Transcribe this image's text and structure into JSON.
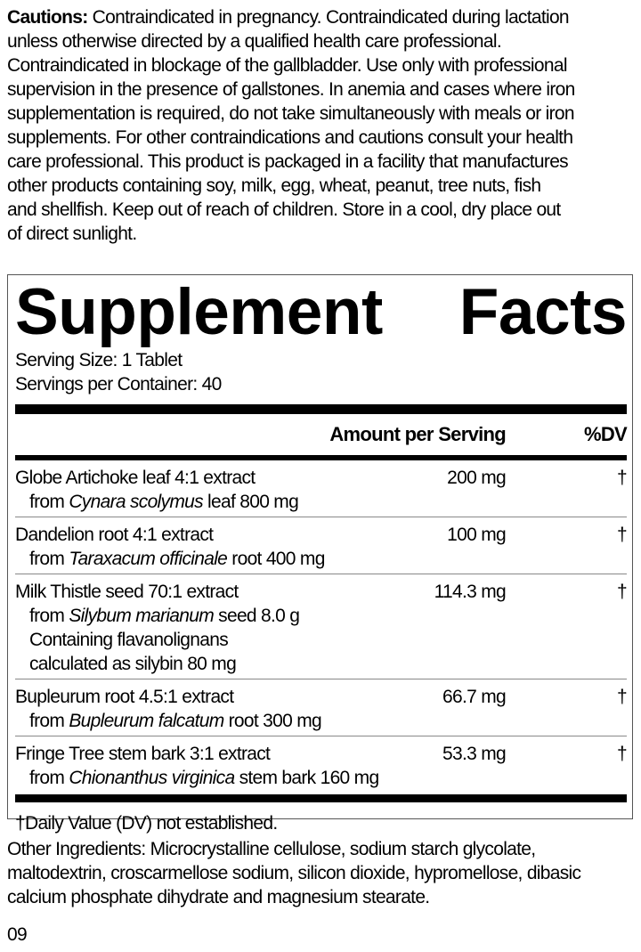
{
  "cautions": {
    "label": "Cautions:",
    "lines": [
      " Contraindicated in pregnancy. Contraindicated during lactation",
      "unless otherwise directed by a qualified health care professional.",
      "Contraindicated in blockage of the gallbladder. Use only with professional",
      "supervision in the presence of gallstones. In anemia and cases where iron",
      "supplementation is required, do not take simultaneously with meals or iron",
      "supplements. For other contraindications and cautions consult your health",
      "care professional. This product is packaged in a facility that manufactures",
      "other products containing soy, milk, egg, wheat, peanut, tree nuts, fish",
      "and shellfish. Keep out of reach of children. Store in a cool, dry place out",
      "of direct sunlight."
    ]
  },
  "facts": {
    "title_word1": "Supplement",
    "title_word2": "Facts",
    "serving_size": "Serving Size: 1 Tablet",
    "servings_per_container": "Servings per Container: 40",
    "header_amount": "Amount per Serving",
    "header_dv": "%DV",
    "rows": [
      {
        "name": "Globe Artichoke leaf 4:1 extract",
        "sub_pre": "from ",
        "sub_italic": "Cynara scolymus",
        "sub_post": " leaf 800 mg",
        "amount": "200 mg",
        "dv": "†"
      },
      {
        "name": "Dandelion root 4:1 extract",
        "sub_pre": "from ",
        "sub_italic": "Taraxacum officinale",
        "sub_post": " root 400 mg",
        "amount": "100 mg",
        "dv": "†"
      },
      {
        "name": "Milk Thistle seed 70:1 extract",
        "sub_pre": "from ",
        "sub_italic": "Silybum marianum",
        "sub_post": " seed 8.0 g",
        "extra1": "Containing flavanolignans",
        "extra2": "calculated as silybin 80 mg",
        "amount": "114.3 mg",
        "dv": "†"
      },
      {
        "name": "Bupleurum root 4.5:1 extract",
        "sub_pre": "from ",
        "sub_italic": "Bupleurum falcatum",
        "sub_post": " root 300 mg",
        "amount": "66.7 mg",
        "dv": "†"
      },
      {
        "name": "Fringe Tree stem bark 3:1 extract",
        "sub_pre": "from ",
        "sub_italic": "Chionanthus virginica",
        "sub_post": " stem bark 160 mg",
        "amount": "53.3 mg",
        "dv": "†"
      }
    ],
    "footnote": "†Daily Value (DV) not established."
  },
  "other_ingredients": {
    "lines": [
      "Other Ingredients: Microcrystalline cellulose, sodium starch glycolate,",
      "maltodextrin, croscarmellose sodium, silicon dioxide, hypromellose, dibasic",
      "calcium phosphate dihydrate and magnesium stearate."
    ]
  },
  "code": "09"
}
